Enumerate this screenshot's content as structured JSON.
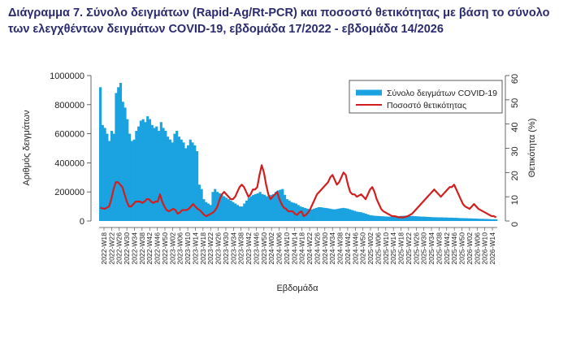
{
  "title_line1": "Διάγραμμα 7. Σύνολο δειγμάτων (Rapid-Ag/Rt-PCR) και ποσοστό θετικότητας με βάση το σύνολο",
  "title_line2": "των ελεγχθέντων δειγμάτων COVID-19, εβδομάδα 17/2022 - εβδομάδα 14/2026",
  "colors": {
    "bars": "#1aa3e0",
    "line": "#d11f1f"
  },
  "chart_data": {
    "type": "bar",
    "xlabel": "Εβδομάδα",
    "ylabel": "Αριθμός δειγμάτων",
    "y2label": "Θετικότητα (%)",
    "ylim": [
      0,
      1000000
    ],
    "yticks": [
      "0",
      "200000",
      "400000",
      "600000",
      "800000",
      "1000000"
    ],
    "y2lim": [
      0,
      60
    ],
    "y2ticks": [
      "0",
      "10",
      "20",
      "30",
      "40",
      "50",
      "60"
    ],
    "legend_position": "top-right",
    "grid": false,
    "xtick_labels": [
      "2022-W18",
      "2022-W22",
      "2022-W26",
      "2022-W30",
      "2022-W34",
      "2022-W38",
      "2022-W42",
      "2022-W46",
      "2022-W50",
      "2023-W02",
      "2023-W06",
      "2023-W10",
      "2023-W14",
      "2023-W18",
      "2023-W22",
      "2023-W26",
      "2023-W30",
      "2023-W34",
      "2023-W38",
      "2023-W42",
      "2023-W46",
      "2023-W50",
      "2024-W02",
      "2024-W06",
      "2024-W10",
      "2024-W14",
      "2024-W18",
      "2024-W22",
      "2024-W26",
      "2024-W30",
      "2024-W34",
      "2024-W38",
      "2024-W42",
      "2024-W46",
      "2024-W50",
      "2025-W02",
      "2025-W06",
      "2025-W10",
      "2025-W14",
      "2025-W18",
      "2025-W22",
      "2025-W26",
      "2025-W30",
      "2025-W34",
      "2025-W38",
      "2025-W42",
      "2025-W46",
      "2025-W50",
      "2026-W02",
      "2026-W06",
      "2026-W10",
      "2026-W14"
    ],
    "series": [
      {
        "name": "Σύνολο δειγμάτων COVID-19",
        "kind": "bar",
        "axis": "left",
        "values": [
          920000,
          660000,
          640000,
          600000,
          550000,
          620000,
          600000,
          880000,
          920000,
          950000,
          820000,
          780000,
          700000,
          600000,
          550000,
          560000,
          620000,
          650000,
          690000,
          700000,
          680000,
          720000,
          700000,
          660000,
          640000,
          650000,
          620000,
          680000,
          640000,
          620000,
          580000,
          560000,
          540000,
          600000,
          620000,
          580000,
          560000,
          540000,
          500000,
          520000,
          560000,
          540000,
          520000,
          480000,
          250000,
          220000,
          150000,
          130000,
          120000,
          110000,
          200000,
          220000,
          200000,
          190000,
          180000,
          170000,
          160000,
          150000,
          140000,
          130000,
          120000,
          110000,
          100000,
          100000,
          120000,
          140000,
          160000,
          170000,
          180000,
          185000,
          190000,
          200000,
          185000,
          180000,
          170000,
          175000,
          180000,
          185000,
          200000,
          210000,
          215000,
          220000,
          180000,
          150000,
          140000,
          130000,
          125000,
          120000,
          110000,
          100000,
          95000,
          90000,
          85000,
          80000,
          80000,
          85000,
          90000,
          95000,
          95000,
          92000,
          90000,
          88000,
          85000,
          82000,
          80000,
          82000,
          85000,
          88000,
          90000,
          88000,
          85000,
          80000,
          75000,
          70000,
          65000,
          62000,
          60000,
          55000,
          50000,
          45000,
          40000,
          38000,
          36000,
          35000,
          34000,
          33000,
          32000,
          31000,
          30000,
          30000,
          31000,
          32000,
          33000,
          34000,
          35000,
          36000,
          37000,
          36000,
          35000,
          34000,
          33000,
          32000,
          31000,
          30000,
          30000,
          29000,
          28000,
          27000,
          26000,
          26000,
          25000,
          25000,
          25000,
          24000,
          24000,
          23000,
          23000,
          22000,
          22000,
          21000,
          20000,
          20000,
          19000,
          19000,
          18000,
          18000,
          17000,
          17000,
          16000,
          15000,
          15000,
          14000,
          14000,
          13000,
          12000,
          12000,
          11000
        ]
      },
      {
        "name": "Ποσοστό θετικότητας",
        "kind": "line",
        "axis": "right",
        "values": [
          5.5,
          5.2,
          5,
          5.5,
          6,
          9,
          13,
          16,
          16,
          15,
          14,
          11,
          8,
          6,
          6,
          7,
          8,
          8,
          8,
          7.5,
          8,
          9,
          9,
          8,
          7.5,
          8,
          8,
          11,
          8,
          6,
          4.5,
          4,
          4.5,
          5,
          4.5,
          3,
          3.5,
          4.5,
          4.5,
          4.5,
          5,
          6,
          7,
          6,
          5,
          4.5,
          3.5,
          2.5,
          2,
          2.5,
          3,
          3.5,
          4.5,
          6,
          9,
          11,
          12,
          11,
          10,
          9,
          9,
          10,
          12,
          14,
          15,
          14,
          12,
          10,
          11,
          13,
          13,
          14,
          19,
          23,
          20,
          15,
          11,
          9,
          10,
          11,
          12,
          9,
          7,
          5.5,
          5,
          4,
          4,
          4,
          3,
          2.5,
          3.5,
          4,
          2,
          2.5,
          3.5,
          5,
          7,
          9,
          11,
          12,
          13,
          14,
          15,
          16,
          18,
          19,
          17,
          15,
          16,
          18,
          20,
          19,
          15,
          12,
          11,
          11,
          10,
          10.5,
          11,
          10,
          9,
          11,
          13,
          14,
          12,
          9,
          7,
          5,
          4,
          3.5,
          3,
          2.5,
          2,
          2,
          1.8,
          1.5,
          1.5,
          1.5,
          1.7,
          2,
          2.5,
          3,
          4,
          5,
          6,
          7,
          8,
          9,
          10,
          11,
          12,
          13,
          12,
          11,
          10,
          11,
          12,
          13,
          14,
          14,
          15,
          13,
          11,
          9,
          7,
          6,
          5.5,
          5,
          6,
          7,
          6,
          5,
          4.5,
          4,
          3.5,
          3,
          2.5,
          2,
          2,
          1.5
        ]
      }
    ]
  }
}
